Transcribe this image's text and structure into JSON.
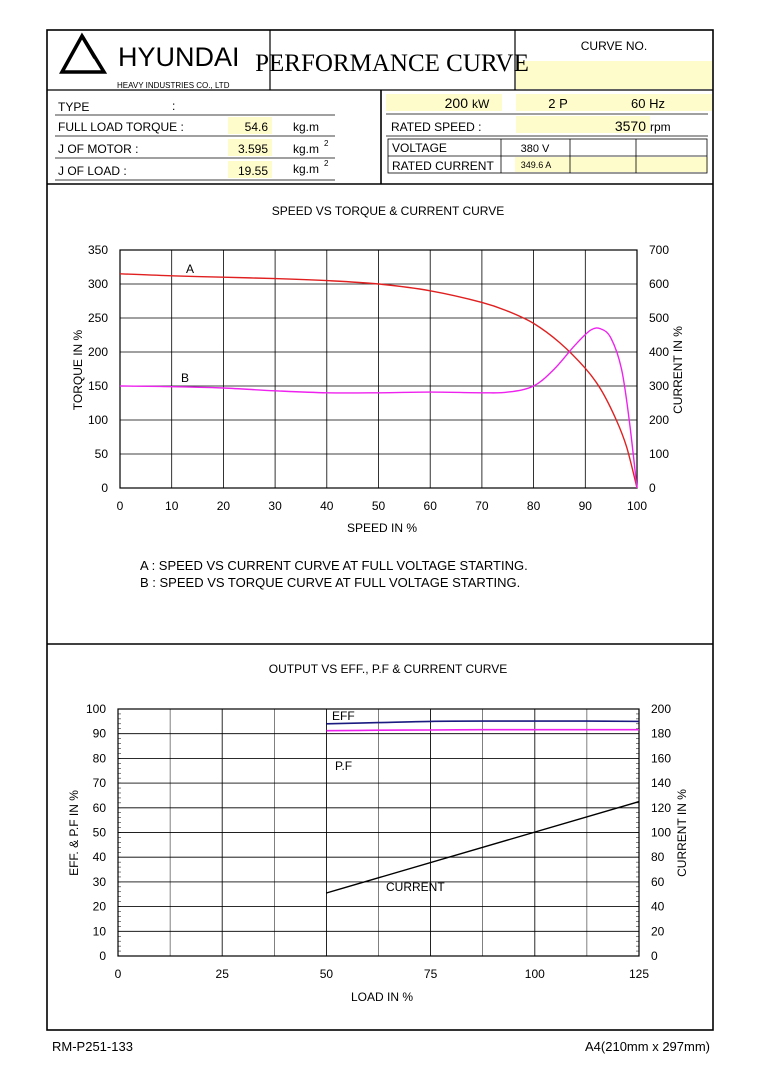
{
  "header": {
    "brand": "HYUNDAI",
    "brand_sub": "HEAVY INDUSTRIES CO., LTD",
    "title": "PERFORMANCE CURVE",
    "curve_no_label": "CURVE NO.",
    "curve_no_value": ""
  },
  "specs": {
    "type_label": "TYPE",
    "type_colon": ":",
    "type_value": "",
    "torque_label": "FULL LOAD TORQUE :",
    "torque_value": "54.6",
    "torque_unit": "kg.m",
    "jmotor_label": "J OF MOTOR :",
    "jmotor_value": "3.595",
    "jmotor_unit": "kg.m",
    "jload_label": "J OF LOAD :",
    "jload_value": "19.55",
    "jload_unit": "kg.m",
    "unit_sup": "2",
    "power_value": "200",
    "power_unit": "kW",
    "poles": "2 P",
    "freq": "60 Hz",
    "speed_label": "RATED   SPEED :",
    "speed_value": "3570",
    "speed_unit": "rpm",
    "voltage_label": "VOLTAGE",
    "voltage_value": "380 V",
    "current_label": "RATED CURRENT",
    "current_value": "349.6 A"
  },
  "colors": {
    "highlight": "#fffccc",
    "red_curve": "#e02020",
    "magenta_curve": "#ee22ee",
    "blue_curve": "#1a1a80",
    "black_curve": "#000000"
  },
  "chart_data": [
    {
      "type": "line",
      "title": "SPEED VS TORQUE & CURRENT CURVE",
      "xlabel": "SPEED IN %",
      "ylabel": "TORQUE IN %",
      "y2label": "CURRENT IN %",
      "xlim": [
        0,
        100
      ],
      "ylim": [
        0,
        350
      ],
      "y2lim": [
        0,
        700
      ],
      "xticks": [
        0,
        10,
        20,
        30,
        40,
        50,
        60,
        70,
        80,
        90,
        100
      ],
      "yticks": [
        0,
        50,
        100,
        150,
        200,
        250,
        300,
        350
      ],
      "y2ticks": [
        0,
        100,
        200,
        300,
        400,
        500,
        600,
        700
      ],
      "grid": true,
      "series": [
        {
          "name": "A",
          "axis": "y2",
          "x": [
            0,
            10,
            20,
            30,
            40,
            50,
            60,
            70,
            75,
            80,
            85,
            90,
            93,
            96,
            98,
            100
          ],
          "values": [
            630,
            624,
            620,
            616,
            610,
            600,
            580,
            546,
            520,
            484,
            428,
            352,
            290,
            200,
            120,
            0
          ]
        },
        {
          "name": "B",
          "axis": "y",
          "x": [
            0,
            10,
            20,
            30,
            40,
            50,
            60,
            70,
            75,
            80,
            84,
            88,
            91,
            93,
            95,
            97,
            98.5,
            100
          ],
          "values": [
            150,
            149,
            147,
            143,
            140,
            140,
            141,
            140,
            141,
            150,
            175,
            210,
            232,
            234,
            220,
            175,
            100,
            0
          ]
        }
      ],
      "notes": [
        "A : SPEED VS CURRENT CURVE AT FULL VOLTAGE STARTING.",
        "B : SPEED VS TORQUE CURVE AT FULL VOLTAGE STARTING."
      ]
    },
    {
      "type": "line",
      "title": "OUTPUT VS EFF., P.F & CURRENT CURVE",
      "xlabel": "LOAD IN %",
      "ylabel": "EFF. & P.F IN %",
      "y2label": "CURRENT IN %",
      "xlim": [
        0,
        125
      ],
      "ylim": [
        0,
        100
      ],
      "y2lim": [
        0,
        200
      ],
      "xticks": [
        0,
        25,
        50,
        75,
        100,
        125
      ],
      "yticks": [
        0,
        10,
        20,
        30,
        40,
        50,
        60,
        70,
        80,
        90,
        100
      ],
      "y2ticks": [
        0,
        20,
        40,
        60,
        80,
        100,
        120,
        140,
        160,
        180,
        200
      ],
      "grid": true,
      "series": [
        {
          "name": "EFF",
          "axis": "y",
          "x": [
            50,
            62.5,
            75,
            87.5,
            100,
            112.5,
            125
          ],
          "values": [
            94.0,
            94.5,
            95.0,
            95.1,
            95.1,
            95.1,
            95.0
          ]
        },
        {
          "name": "P.F",
          "axis": "y",
          "x": [
            50,
            62.5,
            75,
            87.5,
            100,
            112.5,
            125
          ],
          "values": [
            91.2,
            91.4,
            91.5,
            91.6,
            91.6,
            91.6,
            91.6
          ]
        },
        {
          "name": "CURRENT",
          "axis": "y2",
          "x": [
            50,
            125
          ],
          "values": [
            51,
            125
          ]
        }
      ]
    }
  ],
  "footer": {
    "doc_no": "RM-P251-133",
    "paper": "A4(210mm x 297mm)"
  }
}
